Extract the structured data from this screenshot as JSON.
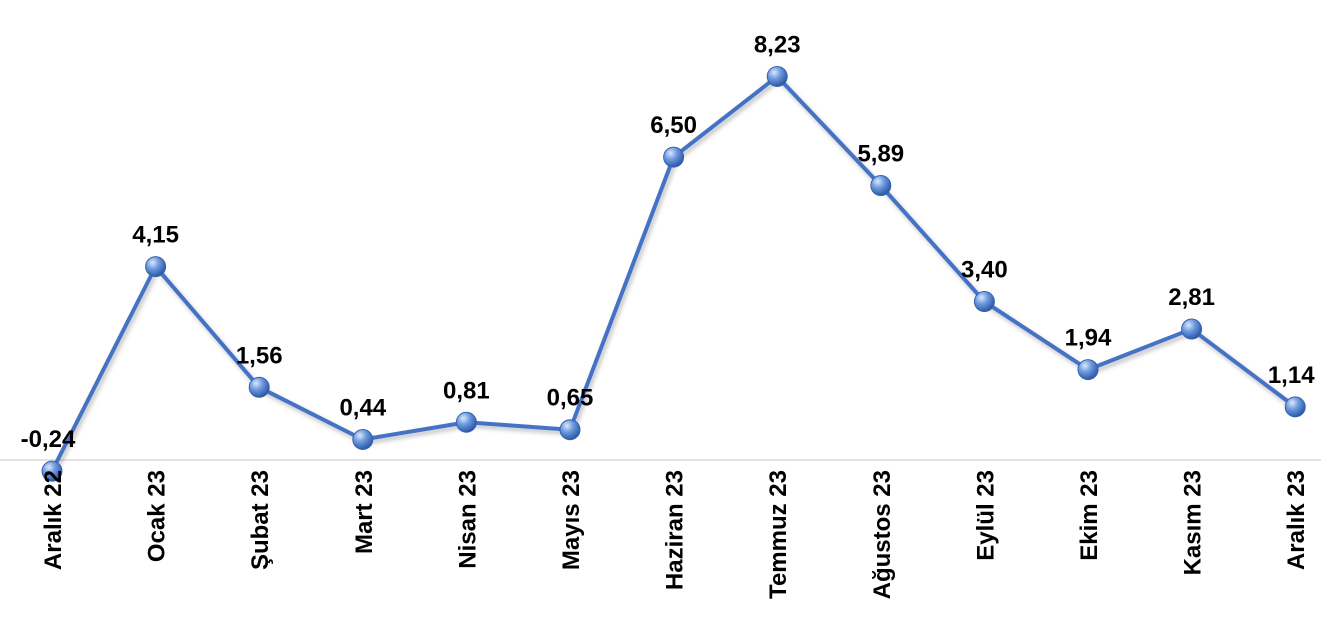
{
  "chart_data": {
    "type": "line",
    "categories": [
      "Aralık 22",
      "Ocak 23",
      "Şubat 23",
      "Mart 23",
      "Nisan 23",
      "Mayıs 23",
      "Haziran 23",
      "Temmuz 23",
      "Ağustos 23",
      "Eylül 23",
      "Ekim 23",
      "Kasım 23",
      "Aralık 23"
    ],
    "values": [
      -0.24,
      4.15,
      1.56,
      0.44,
      0.81,
      0.65,
      6.5,
      8.23,
      5.89,
      3.4,
      1.94,
      2.81,
      1.14
    ],
    "labels": [
      "-0,24",
      "4,15",
      "1,56",
      "0,44",
      "0,81",
      "0,65",
      "6,50",
      "8,23",
      "5,89",
      "3,40",
      "1,94",
      "2,81",
      "1,14"
    ],
    "title": "",
    "xlabel": "",
    "ylabel": "",
    "grid": false,
    "legend": "none",
    "colors": {
      "line": "#4472C4",
      "marker": "#4F7FD0",
      "axis": "#D9D9D9"
    }
  }
}
